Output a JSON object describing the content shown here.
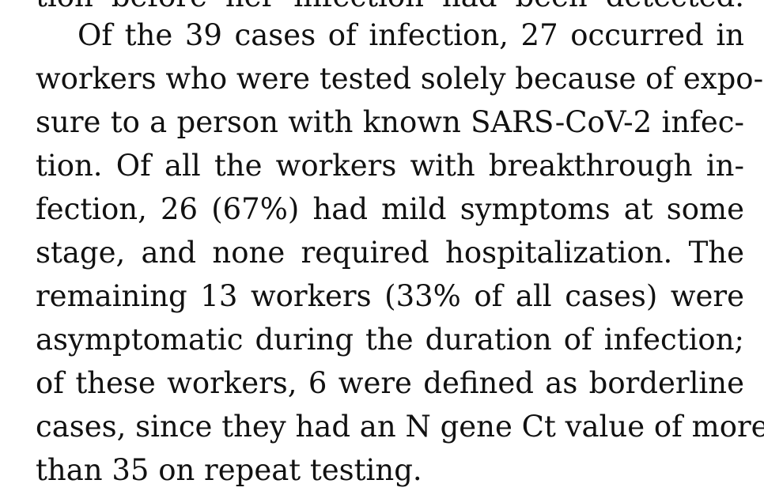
{
  "paragraph": {
    "previous_line_fragment": "tion before her infection had been detected.",
    "lines": [
      "Of the 39 cases of infection, 27 occurred in",
      "workers who were tested solely because of expo-",
      "sure to a person with known SARS-CoV-2 infec-",
      "tion. Of all the workers with breakthrough in-",
      "fection, 26 (67%) had mild symptoms at some",
      "stage, and none required hospitalization. The",
      "remaining 13 workers (33% of all cases) were",
      "asymptomatic during the duration of infection;",
      "of these workers, 6 were defined as borderline",
      "cases, since they had an N gene Ct value of more",
      "than 35 on repeat testing."
    ]
  }
}
